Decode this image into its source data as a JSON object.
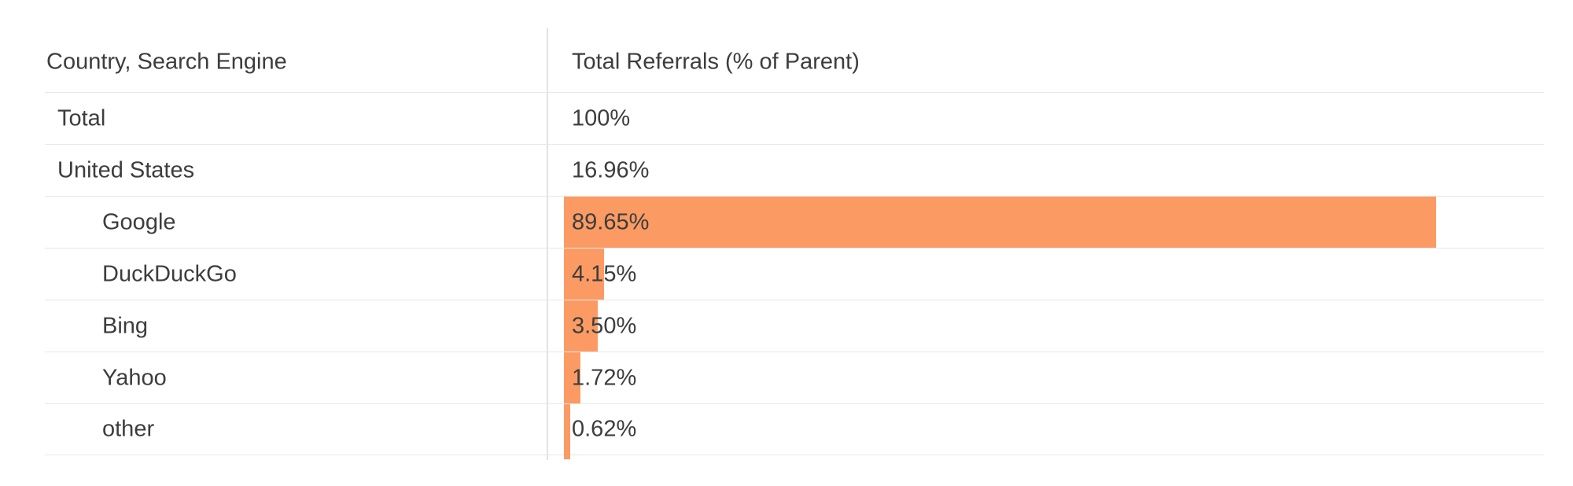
{
  "colors": {
    "accent": "#fb9b63",
    "text": "#3d3d3d",
    "grid": "#e7e7e7",
    "divider": "#e2e2e2",
    "bg": "#ffffff"
  },
  "table": {
    "columns": [
      "Country, Search Engine",
      "Total Referrals (% of Parent)"
    ],
    "rows": [
      {
        "label": "Total",
        "value": "100%",
        "pct": 100,
        "indent": 0,
        "bar": false
      },
      {
        "label": "United States",
        "value": "16.96%",
        "pct": 16.96,
        "indent": 0,
        "bar": false
      },
      {
        "label": "Google",
        "value": "89.65%",
        "pct": 89.65,
        "indent": 1,
        "bar": true
      },
      {
        "label": "DuckDuckGo",
        "value": "4.15%",
        "pct": 4.15,
        "indent": 1,
        "bar": true
      },
      {
        "label": "Bing",
        "value": "3.50%",
        "pct": 3.5,
        "indent": 1,
        "bar": true
      },
      {
        "label": "Yahoo",
        "value": "1.72%",
        "pct": 1.72,
        "indent": 1,
        "bar": true
      },
      {
        "label": "other",
        "value": "0.62%",
        "pct": 0.62,
        "indent": 1,
        "bar": true,
        "overflow": true
      }
    ]
  },
  "chart_data": {
    "type": "table",
    "columns": [
      "Country, Search Engine",
      "Total Referrals (% of Parent)"
    ],
    "rows": [
      [
        "Total",
        "100%"
      ],
      [
        "United States",
        "16.96%"
      ],
      [
        "Google",
        "89.65%"
      ],
      [
        "DuckDuckGo",
        "4.15%"
      ],
      [
        "Bing",
        "3.50%"
      ],
      [
        "Yahoo",
        "1.72%"
      ],
      [
        "other",
        "0.62%"
      ]
    ],
    "bars": {
      "type": "bar",
      "orientation": "horizontal",
      "categories": [
        "Google",
        "DuckDuckGo",
        "Bing",
        "Yahoo",
        "other"
      ],
      "values": [
        89.65,
        4.15,
        3.5,
        1.72,
        0.62
      ],
      "unit": "%",
      "xlim": [
        0,
        100
      ],
      "color": "#fb9b63",
      "grid": false,
      "legend": false
    }
  }
}
